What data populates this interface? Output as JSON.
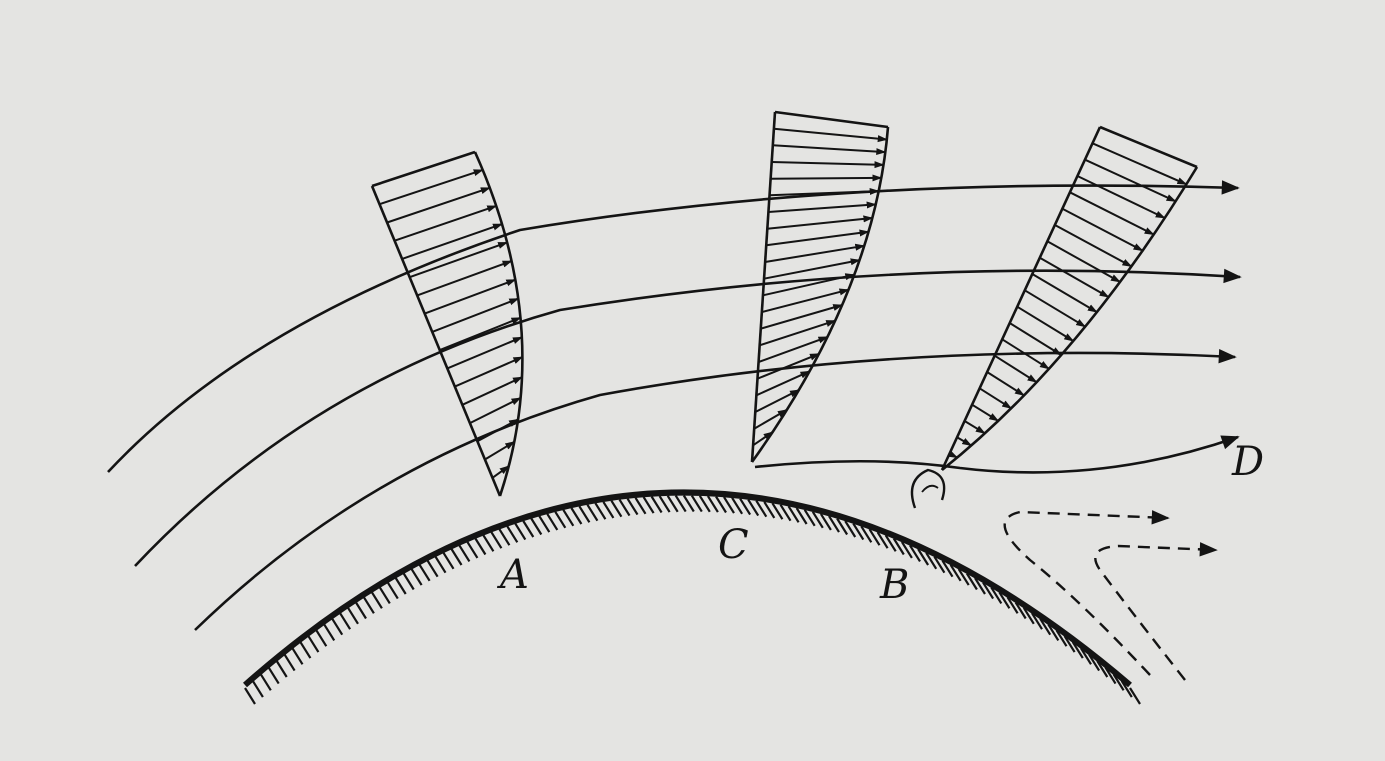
{
  "labels": {
    "point_a": "A",
    "point_b": "B",
    "point_c": "C",
    "point_d": "D"
  },
  "colors": {
    "background": "#e4e4e2",
    "ink": "#141414"
  }
}
